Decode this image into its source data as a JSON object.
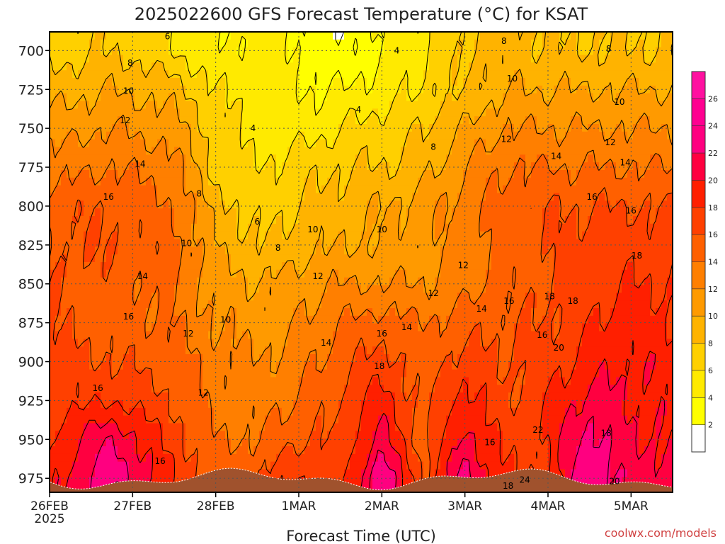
{
  "title": "2025022600 GFS Forecast Temperature (°C) for KSAT",
  "xlabel": "Forecast Time (UTC)",
  "credit": "coolwx.com/models",
  "chart_data": {
    "type": "heatmap",
    "title": "2025022600 GFS Forecast Temperature (°C) for KSAT",
    "xlabel": "Forecast Time (UTC)",
    "ylabel": "",
    "x_ticks": [
      {
        "day": 0,
        "label": "26FEB",
        "sublabel": "2025"
      },
      {
        "day": 1,
        "label": "27FEB",
        "sublabel": ""
      },
      {
        "day": 2,
        "label": "28FEB",
        "sublabel": ""
      },
      {
        "day": 3,
        "label": "1MAR",
        "sublabel": ""
      },
      {
        "day": 4,
        "label": "2MAR",
        "sublabel": ""
      },
      {
        "day": 5,
        "label": "3MAR",
        "sublabel": ""
      },
      {
        "day": 6,
        "label": "4MAR",
        "sublabel": ""
      },
      {
        "day": 7,
        "label": "5MAR",
        "sublabel": ""
      }
    ],
    "xlim": [
      0,
      7.5
    ],
    "y_ticks": [
      700,
      725,
      750,
      775,
      800,
      825,
      850,
      875,
      900,
      925,
      950,
      975
    ],
    "ylim": [
      688,
      984
    ],
    "y_inverted": true,
    "grid": true,
    "colorbar": {
      "levels": [
        2,
        4,
        6,
        8,
        10,
        12,
        14,
        16,
        18,
        20,
        22,
        24,
        26
      ],
      "colors": [
        "#ffffff",
        "#ffff00",
        "#ffea00",
        "#ffd000",
        "#ffb300",
        "#ff9a00",
        "#ff7f00",
        "#ff6000",
        "#ff4000",
        "#ff1f00",
        "#ff0040",
        "#ff0080",
        "#ff0090",
        "#ff10a0"
      ]
    },
    "series": [
      {
        "name": "700",
        "values": [
          7,
          8,
          6,
          4,
          5,
          4,
          2,
          4,
          6,
          8,
          9,
          8,
          8,
          8,
          8,
          8
        ]
      },
      {
        "name": "725",
        "values": [
          9,
          10,
          9,
          6,
          5,
          4,
          4,
          5,
          6,
          8,
          10,
          10,
          10,
          10,
          10,
          10
        ]
      },
      {
        "name": "750",
        "values": [
          11,
          12,
          11,
          7,
          5,
          5,
          6,
          7,
          8,
          10,
          12,
          12,
          12,
          12,
          12,
          12
        ]
      },
      {
        "name": "775",
        "values": [
          13,
          14,
          13,
          7,
          6,
          7,
          8,
          8,
          9,
          12,
          14,
          14,
          14,
          14,
          14,
          14
        ]
      },
      {
        "name": "800",
        "values": [
          15,
          16,
          14,
          9,
          7,
          8,
          9,
          10,
          11,
          13,
          15,
          16,
          16,
          16,
          16,
          16
        ]
      },
      {
        "name": "825",
        "values": [
          16,
          16,
          15,
          10,
          8,
          9,
          10,
          10,
          11,
          13,
          15,
          16,
          17,
          17,
          17,
          17
        ]
      },
      {
        "name": "850",
        "values": [
          16,
          15,
          14,
          11,
          10,
          11,
          12,
          12,
          12,
          13,
          15,
          16,
          17,
          18,
          18,
          18
        ]
      },
      {
        "name": "875",
        "values": [
          16,
          15,
          14,
          12,
          11,
          12,
          14,
          15,
          14,
          15,
          16,
          16,
          18,
          19,
          18,
          19
        ]
      },
      {
        "name": "900",
        "values": [
          17,
          16,
          15,
          13,
          12,
          13,
          15,
          17,
          15,
          17,
          16,
          17,
          19,
          20,
          19,
          20
        ]
      },
      {
        "name": "925",
        "values": [
          17,
          18,
          16,
          13,
          13,
          14,
          16,
          19,
          15,
          19,
          16,
          18,
          21,
          20,
          19,
          20
        ]
      },
      {
        "name": "950",
        "values": [
          18,
          22,
          17,
          14,
          14,
          16,
          16,
          21,
          15,
          21,
          17,
          18,
          23,
          20,
          20,
          21
        ]
      },
      {
        "name": "975",
        "values": [
          19,
          24,
          18,
          15,
          16,
          18,
          17,
          24,
          16,
          23,
          18,
          18,
          24,
          21,
          21,
          21
        ]
      }
    ],
    "x_hours": [
      0,
      18,
      36,
      48,
      60,
      72,
      84,
      96,
      108,
      120,
      132,
      144,
      156,
      168,
      180,
      186
    ],
    "contour_labels": [
      {
        "value": "4",
        "day": 2.45,
        "pres": 750
      },
      {
        "value": "4",
        "day": 4.18,
        "pres": 700
      },
      {
        "value": "4",
        "day": 3.72,
        "pres": 738
      },
      {
        "value": "6",
        "day": 1.42,
        "pres": 691
      },
      {
        "value": "6",
        "day": 2.5,
        "pres": 810
      },
      {
        "value": "8",
        "day": 0.97,
        "pres": 708
      },
      {
        "value": "8",
        "day": 1.8,
        "pres": 792
      },
      {
        "value": "8",
        "day": 2.75,
        "pres": 827
      },
      {
        "value": "8",
        "day": 4.62,
        "pres": 762
      },
      {
        "value": "8",
        "day": 5.47,
        "pres": 694
      },
      {
        "value": "8",
        "day": 6.73,
        "pres": 699
      },
      {
        "value": "10",
        "day": 0.95,
        "pres": 726
      },
      {
        "value": "10",
        "day": 1.65,
        "pres": 824
      },
      {
        "value": "10",
        "day": 2.12,
        "pres": 873
      },
      {
        "value": "10",
        "day": 3.17,
        "pres": 815
      },
      {
        "value": "10",
        "day": 4.0,
        "pres": 815
      },
      {
        "value": "10",
        "day": 5.57,
        "pres": 718
      },
      {
        "value": "10",
        "day": 6.86,
        "pres": 733
      },
      {
        "value": "12",
        "day": 0.91,
        "pres": 745
      },
      {
        "value": "12",
        "day": 1.67,
        "pres": 882
      },
      {
        "value": "12",
        "day": 1.85,
        "pres": 920
      },
      {
        "value": "12",
        "day": 3.23,
        "pres": 845
      },
      {
        "value": "12",
        "day": 4.62,
        "pres": 856
      },
      {
        "value": "12",
        "day": 4.98,
        "pres": 838
      },
      {
        "value": "12",
        "day": 5.5,
        "pres": 757
      },
      {
        "value": "12",
        "day": 6.75,
        "pres": 759
      },
      {
        "value": "14",
        "day": 1.09,
        "pres": 773
      },
      {
        "value": "14",
        "day": 1.12,
        "pres": 845
      },
      {
        "value": "14",
        "day": 3.33,
        "pres": 888
      },
      {
        "value": "14",
        "day": 4.3,
        "pres": 878
      },
      {
        "value": "14",
        "day": 5.2,
        "pres": 866
      },
      {
        "value": "14",
        "day": 6.1,
        "pres": 768
      },
      {
        "value": "14",
        "day": 6.93,
        "pres": 772
      },
      {
        "value": "16",
        "day": 0.71,
        "pres": 794
      },
      {
        "value": "16",
        "day": 0.95,
        "pres": 871
      },
      {
        "value": "16",
        "day": 0.58,
        "pres": 917
      },
      {
        "value": "16",
        "day": 1.33,
        "pres": 964
      },
      {
        "value": "16",
        "day": 4.0,
        "pres": 882
      },
      {
        "value": "16",
        "day": 5.3,
        "pres": 952
      },
      {
        "value": "16",
        "day": 5.53,
        "pres": 861
      },
      {
        "value": "16",
        "day": 5.93,
        "pres": 883
      },
      {
        "value": "16",
        "day": 6.53,
        "pres": 794
      },
      {
        "value": "16",
        "day": 7.0,
        "pres": 803
      },
      {
        "value": "18",
        "day": 3.97,
        "pres": 903
      },
      {
        "value": "18",
        "day": 6.02,
        "pres": 858
      },
      {
        "value": "18",
        "day": 6.3,
        "pres": 861
      },
      {
        "value": "18",
        "day": 7.07,
        "pres": 832
      },
      {
        "value": "18",
        "day": 6.7,
        "pres": 946
      },
      {
        "value": "18",
        "day": 5.52,
        "pres": 980
      },
      {
        "value": "20",
        "day": 6.13,
        "pres": 891
      },
      {
        "value": "20",
        "day": 6.8,
        "pres": 977
      },
      {
        "value": "22",
        "day": 5.88,
        "pres": 944
      },
      {
        "value": "24",
        "day": 5.72,
        "pres": 976
      }
    ]
  }
}
